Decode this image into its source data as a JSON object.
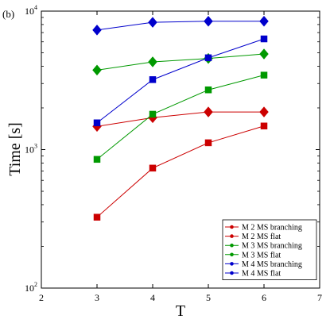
{
  "panel_label": "(b)",
  "chart_data": {
    "type": "line",
    "xlabel": "T",
    "ylabel": "Time [s]",
    "xlim": [
      2,
      7
    ],
    "ylim": [
      100,
      10000
    ],
    "yscale": "log",
    "grid": false,
    "legend_position": "lower-right",
    "xticks": [
      2,
      3,
      4,
      5,
      6,
      7
    ],
    "xtick_labels": [
      "2",
      "3",
      "4",
      "5",
      "6",
      "7"
    ],
    "yticks": [
      100,
      1000,
      10000
    ],
    "ytick_labels": [
      {
        "base": "10",
        "exp": "2"
      },
      {
        "base": "10",
        "exp": "3"
      },
      {
        "base": "10",
        "exp": "4"
      }
    ],
    "series": [
      {
        "name": "M 2 MS branching",
        "color": "#cc0000",
        "marker": "diamond",
        "x": [
          3,
          4,
          5,
          6
        ],
        "y": [
          1470,
          1700,
          1870,
          1870
        ]
      },
      {
        "name": "M 2 MS flat",
        "color": "#cc0000",
        "marker": "square",
        "x": [
          3,
          4,
          5,
          6
        ],
        "y": [
          325,
          735,
          1120,
          1480
        ]
      },
      {
        "name": "M 3 MS branching",
        "color": "#009900",
        "marker": "diamond",
        "x": [
          3,
          4,
          5,
          6
        ],
        "y": [
          3750,
          4300,
          4550,
          4900
        ]
      },
      {
        "name": "M 3 MS flat",
        "color": "#009900",
        "marker": "square",
        "x": [
          3,
          4,
          5,
          6
        ],
        "y": [
          850,
          1800,
          2700,
          3450
        ]
      },
      {
        "name": "M 4 MS branching",
        "color": "#0000cc",
        "marker": "diamond",
        "x": [
          3,
          4,
          5,
          6
        ],
        "y": [
          7300,
          8300,
          8450,
          8450
        ]
      },
      {
        "name": "M 4 MS flat",
        "color": "#0000cc",
        "marker": "square",
        "x": [
          3,
          4,
          5,
          6
        ],
        "y": [
          1560,
          3200,
          4600,
          6300
        ]
      }
    ]
  }
}
